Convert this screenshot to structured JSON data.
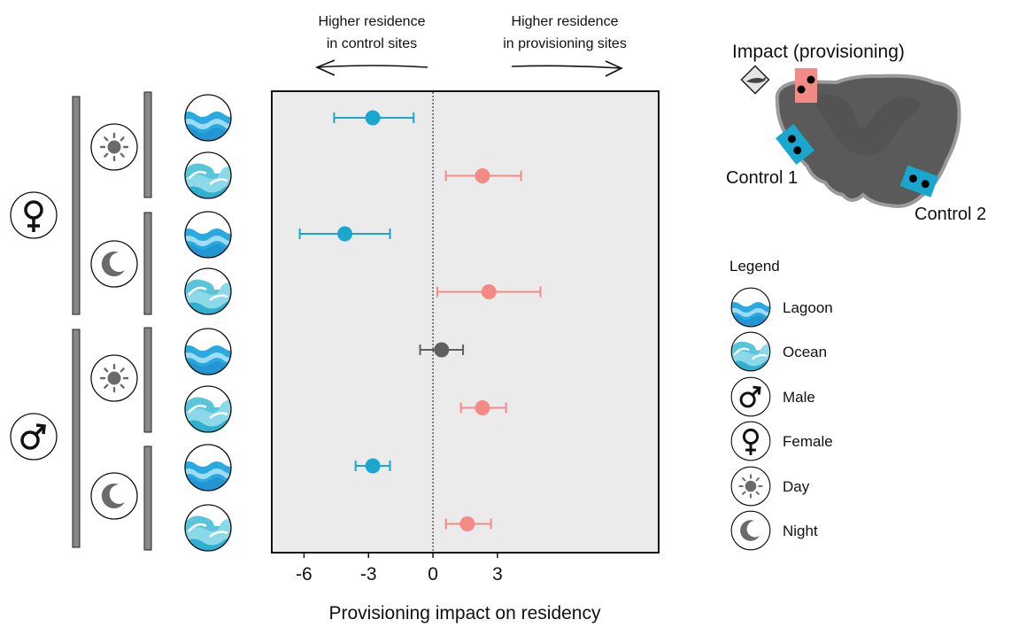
{
  "chart_data": {
    "type": "scatter",
    "subtype": "forest-plot-with-error-bars",
    "xlabel": "Provisioning impact on residency",
    "xlim": [
      -7.5,
      10.5
    ],
    "xticks": [
      -6,
      -3,
      0,
      3
    ],
    "reference_line": 0,
    "grid": false,
    "direction_labels": {
      "left": [
        "Higher residence",
        "in control sites"
      ],
      "right": [
        "Higher residence",
        "in provisioning sites"
      ]
    },
    "colors": {
      "negative": "#1aa7cf",
      "positive": "#f48a86",
      "nonsignificant": "#5f5f5f"
    },
    "rows": [
      {
        "sex": "Female",
        "time": "Day",
        "habitat": "Lagoon",
        "estimate": -2.8,
        "lower": -4.6,
        "upper": -0.9,
        "group": "negative"
      },
      {
        "sex": "Female",
        "time": "Day",
        "habitat": "Ocean",
        "estimate": 2.3,
        "lower": 0.6,
        "upper": 4.1,
        "group": "positive"
      },
      {
        "sex": "Female",
        "time": "Night",
        "habitat": "Lagoon",
        "estimate": -4.1,
        "lower": -6.2,
        "upper": -2.0,
        "group": "negative"
      },
      {
        "sex": "Female",
        "time": "Night",
        "habitat": "Ocean",
        "estimate": 2.6,
        "lower": 0.2,
        "upper": 5.0,
        "group": "positive"
      },
      {
        "sex": "Male",
        "time": "Day",
        "habitat": "Lagoon",
        "estimate": 0.4,
        "lower": -0.6,
        "upper": 1.4,
        "group": "nonsignificant"
      },
      {
        "sex": "Male",
        "time": "Day",
        "habitat": "Ocean",
        "estimate": 2.3,
        "lower": 1.3,
        "upper": 3.4,
        "group": "positive"
      },
      {
        "sex": "Male",
        "time": "Night",
        "habitat": "Lagoon",
        "estimate": -2.8,
        "lower": -3.6,
        "upper": -2.0,
        "group": "negative"
      },
      {
        "sex": "Male",
        "time": "Night",
        "habitat": "Ocean",
        "estimate": 1.6,
        "lower": 0.6,
        "upper": 2.7,
        "group": "positive"
      }
    ]
  },
  "map": {
    "impact_label": "Impact (provisioning)",
    "control1_label": "Control 1",
    "control2_label": "Control 2"
  },
  "legend": {
    "title": "Legend",
    "items": [
      {
        "icon": "lagoon-icon",
        "label": "Lagoon"
      },
      {
        "icon": "ocean-icon",
        "label": "Ocean"
      },
      {
        "icon": "male-icon",
        "label": "Male"
      },
      {
        "icon": "female-icon",
        "label": "Female"
      },
      {
        "icon": "day-icon",
        "label": "Day"
      },
      {
        "icon": "night-icon",
        "label": "Night"
      }
    ]
  }
}
